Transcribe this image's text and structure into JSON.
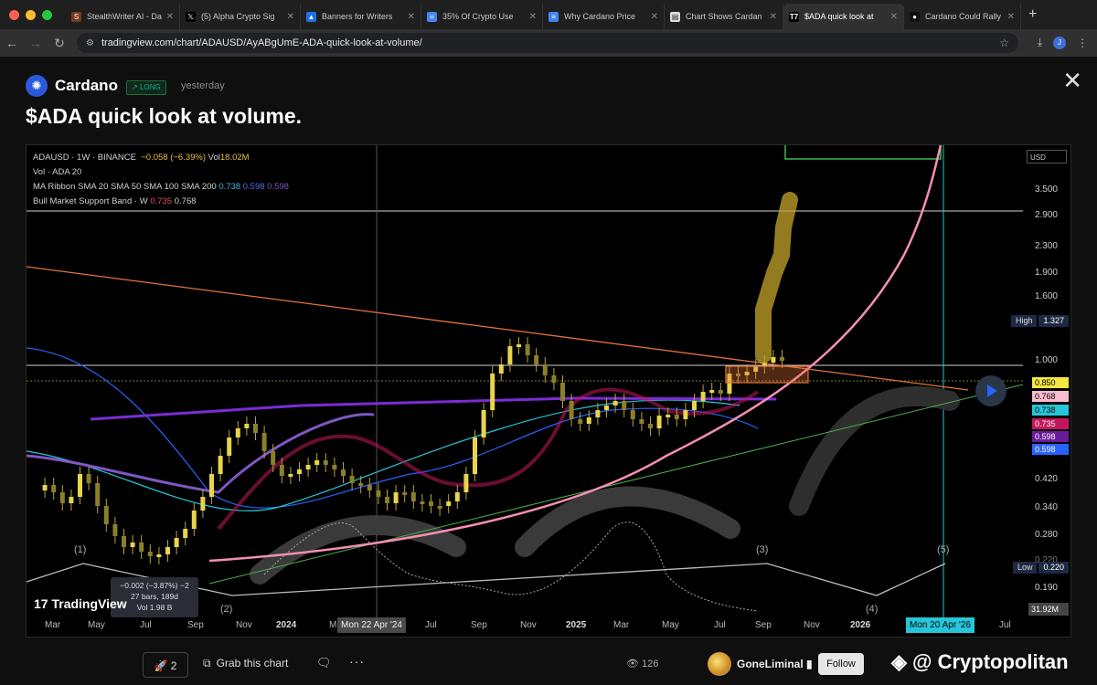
{
  "browser": {
    "tabs": [
      {
        "title": "StealthWriter AI - Da",
        "icon": "stealthwriter-icon"
      },
      {
        "title": "(5) Alpha Crypto Sig",
        "icon": "x-icon"
      },
      {
        "title": "Banners for Writers",
        "icon": "drive-icon"
      },
      {
        "title": "35% Of Crypto Use",
        "icon": "docs-icon"
      },
      {
        "title": "Why Cardano Price",
        "icon": "docs-icon"
      },
      {
        "title": "Chart Shows Cardan",
        "icon": "page-icon"
      },
      {
        "title": "$ADA quick look at",
        "icon": "tradingview-icon",
        "active": true
      },
      {
        "title": "Cardano Could Rally",
        "icon": "site-icon"
      }
    ],
    "url": "tradingview.com/chart/ADAUSD/AyABgUmE-ADA-quick-look-at-volume/",
    "profile_initial": "J"
  },
  "idea": {
    "symbol": "Cardano",
    "badge": "LONG",
    "posted": "yesterday",
    "title": "$ADA quick look at volume."
  },
  "legend": {
    "symbol_line": "ADAUSD · 1W · BINANCE",
    "change": "−0.058 (−6.39%)",
    "vol_label": "Vol",
    "vol_value": "18.02M",
    "vol_indicator": "Vol · ADA 20",
    "ma_ribbon": "MA Ribbon SMA 20 SMA 50 SMA 100 SMA 200",
    "ma_values": [
      "0.738",
      "0.598",
      "0.598"
    ],
    "bmsb": "Bull Market Support Band · W",
    "bmsb_values": [
      "0.735",
      "0.768"
    ]
  },
  "chart_data": {
    "type": "candlestick",
    "symbol": "ADAUSD",
    "interval": "1W",
    "exchange": "BINANCE",
    "currency": "USD",
    "y_scale": "log",
    "y_ticks": [
      "3.500",
      "2.900",
      "2.300",
      "1.900",
      "1.600",
      "1.000",
      "0.420",
      "0.340",
      "0.280",
      "0.220",
      "0.190"
    ],
    "x_ticks": [
      "Mar",
      "May",
      "Jul",
      "Sep",
      "Nov",
      "2024",
      "M",
      "Jul",
      "Sep",
      "Nov",
      "2025",
      "Mar",
      "May",
      "Jul",
      "Sep",
      "Nov",
      "2026",
      "Jul"
    ],
    "price_badges": [
      {
        "value": "0.850",
        "bg": "#f5e642",
        "fg": "#000000"
      },
      {
        "value": "0.768",
        "bg": "#f8bbd0",
        "fg": "#000000"
      },
      {
        "value": "0.738",
        "bg": "#26c6da",
        "fg": "#000000"
      },
      {
        "value": "0.735",
        "bg": "#c2185b",
        "fg": "#ffffff"
      },
      {
        "value": "0.598",
        "bg": "#6a1b9a",
        "fg": "#ffffff"
      },
      {
        "value": "0.598",
        "bg": "#2962ff",
        "fg": "#ffffff"
      }
    ],
    "high": {
      "label": "High",
      "value": "1.327"
    },
    "low": {
      "label": "Low",
      "value": "0.220"
    },
    "volume_badge": "31.92M",
    "crosshair_date": "Mon 22 Apr '24",
    "cursor_date": "Mon 20 Apr '26",
    "elliott_waves": [
      "(1)",
      "(2)",
      "(3)",
      "(4)",
      "(5)"
    ],
    "measure_tool": [
      "−0.002 (−3.87%) −2",
      "27 bars, 189d",
      "Vol 1.98 B"
    ],
    "colors": {
      "candle": "#e8d44d",
      "support_curve": "#f48fb1",
      "resistance_line": "#e6733a",
      "highlight_box": "#e6733a"
    }
  },
  "toolbar": {
    "boosts": "2",
    "grab_label": "Grab this chart",
    "views": "126",
    "author": "GoneLiminal",
    "follow_label": "Follow"
  },
  "watermark": {
    "brand": "TradingView",
    "credit": "@ Cryptopolitan"
  }
}
